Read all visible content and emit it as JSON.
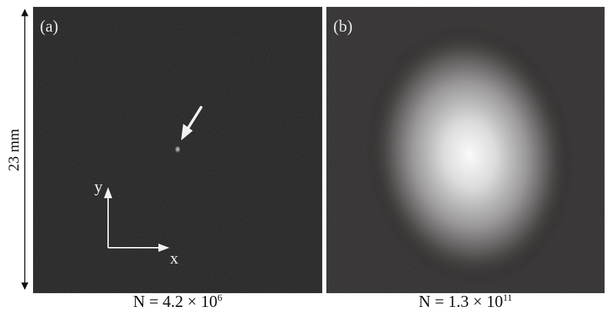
{
  "panels": [
    {
      "label": "(a)",
      "caption": {
        "prefix": "N = 4.2 × 10",
        "exponent": "6"
      },
      "axes": {
        "x_label": "x",
        "y_label": "y"
      }
    },
    {
      "label": "(b)",
      "caption": {
        "prefix": "N = 1.3 × 10",
        "exponent": "11"
      }
    }
  ],
  "scale_bar": {
    "label": "23 mm"
  },
  "colors": {
    "panel_background": "#1c1c1c",
    "panel_b_background": "#2a2727",
    "text_on_panel": "#e8e8e8",
    "caption_text": "#111111"
  }
}
